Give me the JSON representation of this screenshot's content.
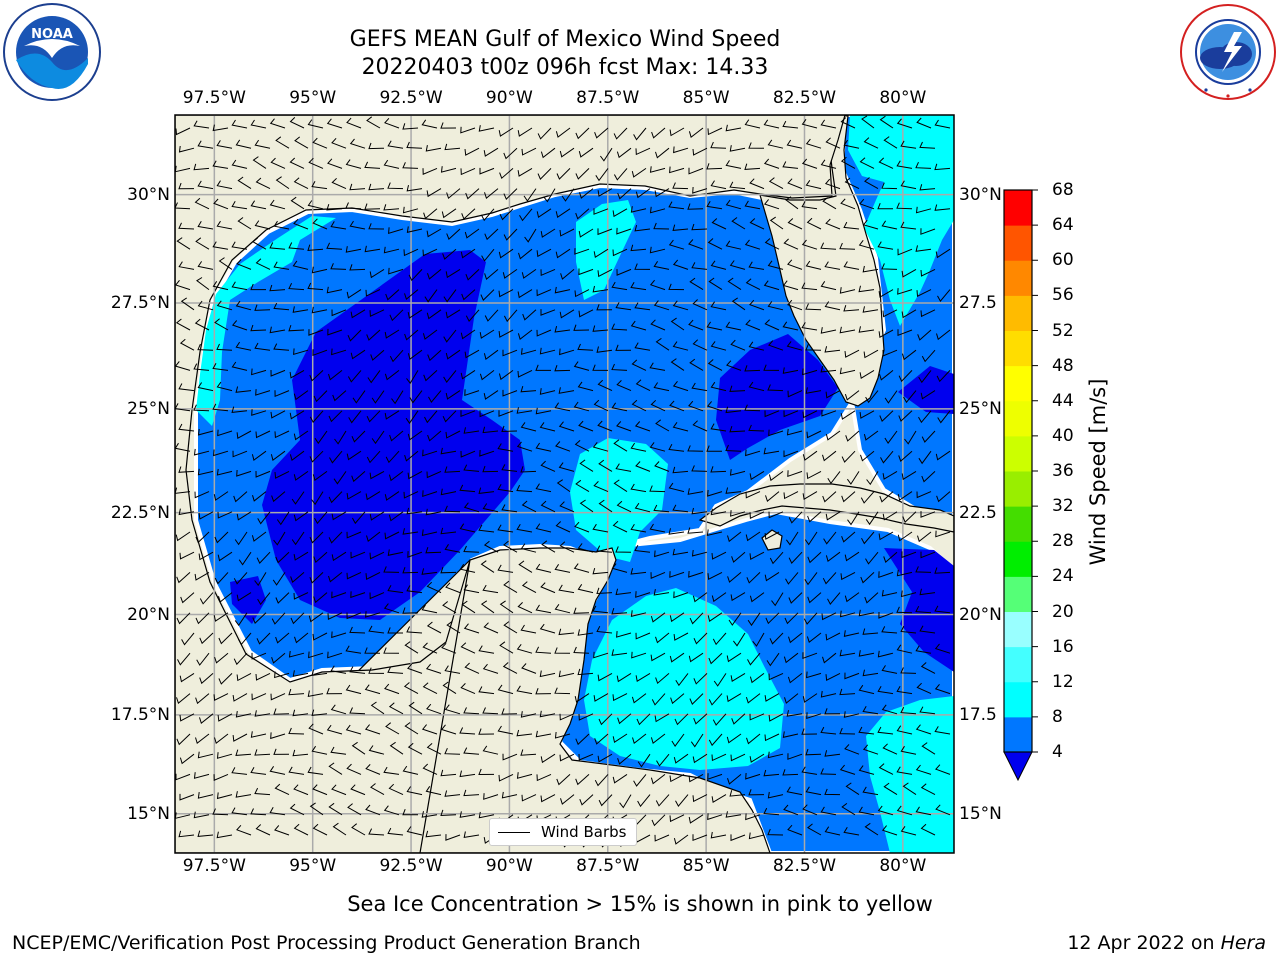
{
  "title": {
    "line1": "GEFS MEAN Gulf of Mexico Wind Speed",
    "line2": "20220403 t00z 096h fcst   Max: 14.33"
  },
  "logos": {
    "noaa": {
      "text": "NOAA",
      "ring_text": "NATIONAL OCEANIC AND ATMOSPHERIC ADMINISTRATION · U.S. DEPARTMENT OF COMMERCE"
    },
    "nws": {
      "ring_text": "NATIONAL WEATHER SERVICE"
    }
  },
  "map": {
    "lon_range": [
      -98.5,
      -78.7
    ],
    "lat_range": [
      14.0,
      31.8
    ],
    "lon_ticks": [
      -97.5,
      -95,
      -92.5,
      -90,
      -87.5,
      -85,
      -82.5,
      -80
    ],
    "lat_ticks": [
      15,
      17.5,
      20,
      22.5,
      25,
      27.5,
      30
    ],
    "lon_labels": [
      "97.5°W",
      "95°W",
      "92.5°W",
      "90°W",
      "87.5°W",
      "85°W",
      "82.5°W",
      "80°W"
    ],
    "lat_labels": [
      "15°N",
      "17.5°N",
      "20°N",
      "22.5°N",
      "25°N",
      "27.5°N",
      "30°N"
    ],
    "lat_labels_right": [
      "15°N",
      "17.5",
      "20°N",
      "22.5",
      "25°N",
      "27.5",
      "30°N"
    ],
    "land_color": "#efeedc",
    "grid": true,
    "legend": {
      "label": "Wind Barbs",
      "placement": "lower-center"
    }
  },
  "colorbar": {
    "label": "Wind Speed [m/s]",
    "levels": [
      4,
      8,
      12,
      16,
      20,
      24,
      28,
      32,
      36,
      40,
      44,
      48,
      52,
      56,
      60,
      64,
      68
    ],
    "colors": [
      "#0077ff",
      "#00ffff",
      "#44ffff",
      "#99ffff",
      "#55ff77",
      "#00ee00",
      "#44dd00",
      "#99ee00",
      "#ccff00",
      "#eeff00",
      "#ffff00",
      "#ffdd00",
      "#ffbb00",
      "#ff8800",
      "#ff5500",
      "#ff0000"
    ],
    "under_color": "#0000ee"
  },
  "chart_data": {
    "type": "heatmap",
    "title": "GEFS MEAN Gulf of Mexico Wind Speed",
    "subtitle": "20220403 t00z 096h fcst   Max: 14.33",
    "units": "m/s",
    "max_value": 14.33,
    "speed_classes": [
      {
        "range": "< 4",
        "color": "#0000ee"
      },
      {
        "range": "4-8",
        "color": "#0077ff"
      },
      {
        "range": "8-12",
        "color": "#00ffff"
      },
      {
        "range": "12-16",
        "color": "#44ffff"
      }
    ]
  },
  "footer": {
    "note": "Sea Ice Concentration > 15% is shown in pink to yellow",
    "credit": "NCEP/EMC/Verification Post Processing Product Generation Branch",
    "date": "12 Apr 2022 on ",
    "machine": "Hera"
  }
}
